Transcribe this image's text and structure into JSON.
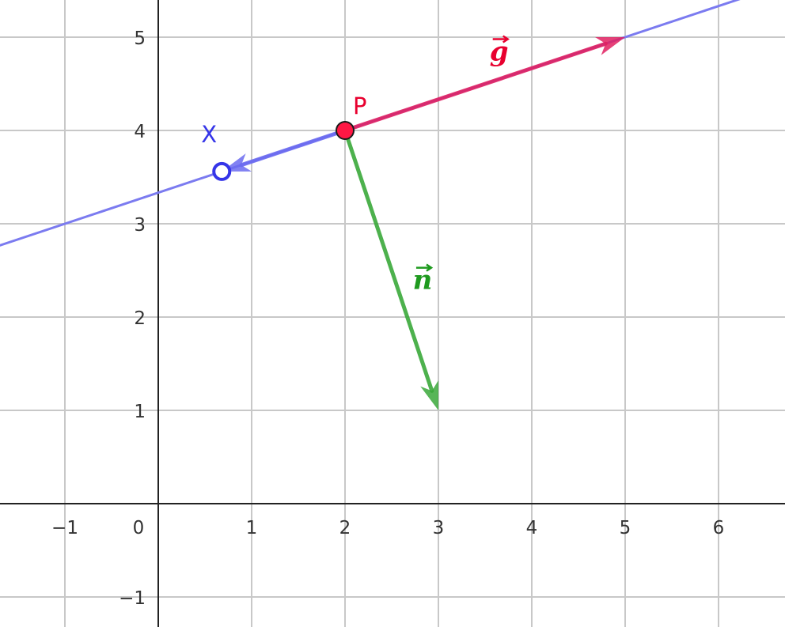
{
  "chart_data": {
    "type": "diagram",
    "grid": true,
    "x_ticks": [
      "−1",
      "0",
      "1",
      "2",
      "3",
      "4",
      "5",
      "6"
    ],
    "y_ticks": [
      "−1",
      "1",
      "2",
      "3",
      "4",
      "5"
    ],
    "x_tick_values": [
      -1,
      0,
      1,
      2,
      3,
      4,
      5,
      6
    ],
    "y_tick_values": [
      -1,
      1,
      2,
      3,
      4,
      5
    ],
    "xlim": [
      -1.7,
      6.7
    ],
    "ylim": [
      -1.3,
      5.4
    ],
    "line": {
      "point": [
        2,
        4
      ],
      "direction": [
        3,
        1
      ],
      "color": "#7b7bf0"
    },
    "points": [
      {
        "label": "P",
        "x": 2,
        "y": 4,
        "color": "#e8002f"
      },
      {
        "label": "X",
        "x": 0.68,
        "y": 3.56,
        "color": "#3535e8"
      }
    ],
    "vectors": [
      {
        "label": "g",
        "from": [
          2,
          4
        ],
        "to": [
          5,
          5
        ],
        "color": "#e02060"
      },
      {
        "label": "n",
        "from": [
          2,
          4
        ],
        "to": [
          3,
          1
        ],
        "color": "#3aa83a"
      },
      {
        "label": "",
        "from": [
          2,
          4
        ],
        "to": [
          0.68,
          3.56
        ],
        "color": "#6b6bf0"
      }
    ]
  }
}
